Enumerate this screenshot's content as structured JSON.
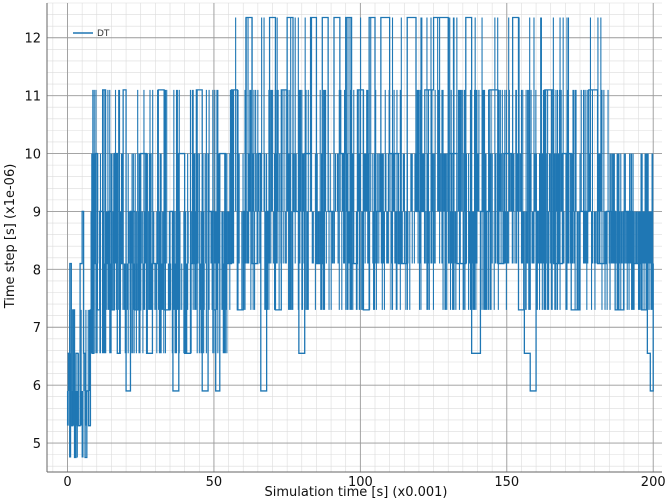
{
  "chart_data": {
    "type": "line",
    "title": "",
    "xlabel": "Simulation time [s] (x0.001)",
    "ylabel": "Time step [s] (x1e-06)",
    "xlim": [
      -7,
      203
    ],
    "ylim": [
      4.5,
      12.6
    ],
    "x_ticks": [
      0,
      50,
      100,
      150,
      200
    ],
    "y_ticks": [
      5,
      6,
      7,
      8,
      9,
      10,
      11,
      12
    ],
    "x_minor_step": 5,
    "y_minor_step": 0.2,
    "grid": true,
    "legend_position": "top-left",
    "levels": [
      4.75,
      5.3,
      5.9,
      6.55,
      7.3,
      8.1,
      9.0,
      10.0,
      11.1,
      12.35
    ],
    "series": [
      {
        "name": "DT",
        "color": "#1f77b4",
        "points": [
          [
            0.0,
            6.55
          ],
          [
            0.8,
            8.1
          ],
          [
            1.3,
            5.3
          ],
          [
            1.8,
            7.3
          ],
          [
            2.4,
            4.75
          ],
          [
            2.9,
            6.55
          ],
          [
            3.6,
            5.3
          ],
          [
            4.3,
            8.1
          ],
          [
            5.0,
            9.0
          ],
          [
            5.5,
            6.55
          ],
          [
            6.0,
            4.75
          ],
          [
            6.6,
            5.9
          ],
          [
            7.2,
            5.3
          ],
          [
            7.8,
            7.3
          ],
          [
            8.4,
            6.55
          ],
          [
            9.0,
            8.1
          ],
          [
            9.6,
            10.0
          ],
          [
            10.2,
            7.3
          ],
          [
            11.0,
            9.0
          ],
          [
            12.0,
            11.1
          ],
          [
            13.0,
            8.1
          ],
          [
            14.0,
            9.0
          ],
          [
            15.0,
            7.3
          ],
          [
            16.0,
            10.0
          ],
          [
            17.0,
            6.55
          ],
          [
            18.0,
            8.1
          ],
          [
            19.0,
            11.1
          ],
          [
            20.0,
            5.9
          ],
          [
            21.5,
            9.0
          ],
          [
            23.0,
            7.3
          ],
          [
            25.0,
            10.0
          ],
          [
            27.0,
            6.55
          ],
          [
            29.0,
            8.1
          ],
          [
            31.0,
            11.1
          ],
          [
            33.0,
            7.3
          ],
          [
            35.0,
            9.0
          ],
          [
            36.0,
            5.9
          ],
          [
            38.0,
            10.0
          ],
          [
            40.0,
            6.55
          ],
          [
            42.0,
            8.1
          ],
          [
            44.0,
            11.1
          ],
          [
            46.0,
            5.9
          ],
          [
            48.0,
            9.0
          ],
          [
            50.0,
            7.3
          ],
          [
            50.6,
            5.9
          ],
          [
            52.0,
            10.0
          ],
          [
            54.0,
            8.1
          ],
          [
            56.0,
            11.1
          ],
          [
            58.0,
            7.3
          ],
          [
            60.0,
            9.0
          ],
          [
            61.0,
            12.35
          ],
          [
            63.0,
            8.1
          ],
          [
            65.0,
            10.0
          ],
          [
            66.0,
            5.9
          ],
          [
            68.0,
            9.0
          ],
          [
            69.0,
            12.35
          ],
          [
            71.0,
            7.3
          ],
          [
            73.0,
            11.1
          ],
          [
            75.0,
            12.35
          ],
          [
            77.0,
            9.0
          ],
          [
            79.0,
            6.55
          ],
          [
            81.0,
            10.0
          ],
          [
            83.0,
            12.35
          ],
          [
            85.0,
            8.1
          ],
          [
            87.0,
            12.35
          ],
          [
            89.0,
            9.0
          ],
          [
            91.0,
            12.35
          ],
          [
            93.0,
            10.0
          ],
          [
            95.0,
            12.35
          ],
          [
            97.0,
            8.1
          ],
          [
            99.0,
            11.1
          ],
          [
            101.0,
            7.3
          ],
          [
            103.0,
            12.35
          ],
          [
            105.0,
            9.0
          ],
          [
            107.0,
            12.35
          ],
          [
            110.0,
            10.0
          ],
          [
            113.0,
            8.1
          ],
          [
            116.0,
            12.35
          ],
          [
            119.0,
            9.0
          ],
          [
            122.0,
            11.1
          ],
          [
            125.0,
            12.35
          ],
          [
            127.0,
            12.35
          ],
          [
            130.0,
            10.0
          ],
          [
            133.0,
            8.1
          ],
          [
            136.0,
            12.35
          ],
          [
            138.0,
            6.55
          ],
          [
            141.0,
            9.0
          ],
          [
            144.0,
            11.1
          ],
          [
            147.0,
            8.1
          ],
          [
            149.0,
            10.0
          ],
          [
            152.0,
            12.35
          ],
          [
            154.0,
            7.3
          ],
          [
            156.0,
            6.55
          ],
          [
            158.0,
            5.9
          ],
          [
            160.0,
            9.0
          ],
          [
            163.0,
            11.1
          ],
          [
            166.0,
            8.1
          ],
          [
            169.0,
            10.0
          ],
          [
            172.0,
            7.3
          ],
          [
            175.0,
            9.0
          ],
          [
            178.0,
            11.1
          ],
          [
            181.0,
            8.1
          ],
          [
            184.0,
            9.0
          ],
          [
            187.0,
            7.3
          ],
          [
            190.0,
            9.0
          ],
          [
            193.0,
            8.1
          ],
          [
            196.0,
            7.3
          ],
          [
            198.0,
            6.55
          ],
          [
            199.0,
            5.9
          ],
          [
            200.0,
            8.1
          ]
        ]
      }
    ]
  }
}
